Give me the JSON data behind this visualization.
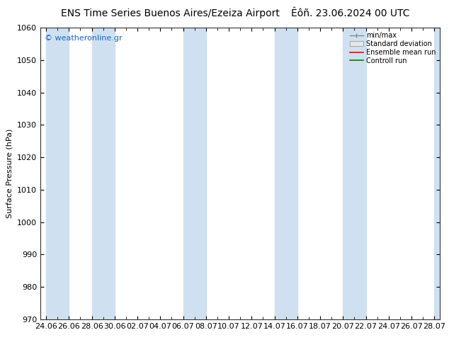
{
  "title_left": "ENS Time Series Buenos Aires/Ezeiza Airport",
  "title_right": "Êôñ. 23.06.2024 00 UTC",
  "ylabel": "Surface Pressure (hPa)",
  "ylim": [
    970,
    1060
  ],
  "yticks": [
    970,
    980,
    990,
    1000,
    1010,
    1020,
    1030,
    1040,
    1050,
    1060
  ],
  "xtick_labels": [
    "24.06",
    "26.06",
    "28.06",
    "30.06",
    "02.07",
    "04.07",
    "06.07",
    "08.07",
    "10.07",
    "12.07",
    "14.07",
    "16.07",
    "18.07",
    "20.07",
    "22.07",
    "24.07",
    "26.07",
    "28.07"
  ],
  "stripe_color": "#cfe1f0",
  "background_color": "#ffffff",
  "plot_bg_color": "#ffffff",
  "watermark": "© weatheronline.gr",
  "legend_entries": [
    "min/max",
    "Standard deviation",
    "Ensemble mean run",
    "Controll run"
  ],
  "legend_colors": [
    "#888888",
    "#cccccc",
    "#ff0000",
    "#008000"
  ],
  "title_fontsize": 10,
  "axis_fontsize": 8,
  "tick_fontsize": 8,
  "fig_width": 6.34,
  "fig_height": 4.9,
  "dpi": 100
}
